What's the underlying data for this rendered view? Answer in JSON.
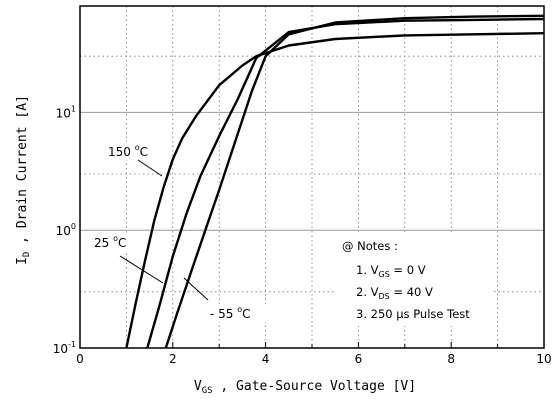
{
  "chart_data": {
    "type": "line",
    "xlabel": "V",
    "xlabel_sub": "GS",
    "xlabel_rest": " , Gate-Source Voltage   [V]",
    "ylabel": "I",
    "ylabel_sub": "D",
    "ylabel_rest": " , Drain Current   [A]",
    "xlim": [
      0,
      10
    ],
    "ylim": [
      0.1,
      80
    ],
    "y_scale": "log",
    "grid": "dotted",
    "x_ticks": [
      "0",
      "2",
      "4",
      "6",
      "8",
      "10"
    ],
    "y_ticks": [
      {
        "base": "10",
        "exp": "-1",
        "value": 0.1
      },
      {
        "base": "10",
        "exp": "0",
        "value": 1
      },
      {
        "base": "10",
        "exp": "1",
        "value": 10
      }
    ],
    "series": [
      {
        "name": "150 °C",
        "x": [
          1.0,
          1.2,
          1.4,
          1.6,
          1.8,
          2.0,
          2.2,
          2.5,
          3.0,
          3.5,
          3.8,
          4.5,
          5.5,
          7.0,
          8.5,
          10.0
        ],
        "y": [
          0.1,
          0.24,
          0.55,
          1.2,
          2.3,
          4.0,
          6.0,
          9.3,
          17.0,
          25.0,
          30.0,
          37.0,
          42.0,
          45.0,
          46.0,
          47.0
        ]
      },
      {
        "name": "25 °C",
        "x": [
          1.45,
          1.7,
          2.0,
          2.3,
          2.6,
          3.0,
          3.4,
          3.8,
          4.5,
          5.5,
          7.0,
          8.5,
          10.0
        ],
        "y": [
          0.1,
          0.22,
          0.6,
          1.4,
          2.9,
          6.3,
          13.0,
          29.0,
          48.0,
          56.0,
          60.0,
          61.0,
          62.0
        ]
      },
      {
        "name": "- 55 °C",
        "x": [
          1.85,
          2.1,
          2.4,
          2.7,
          3.0,
          3.3,
          3.7,
          4.0,
          4.5,
          5.5,
          7.0,
          8.5,
          10.0
        ],
        "y": [
          0.1,
          0.2,
          0.45,
          1.0,
          2.2,
          5.0,
          15.0,
          30.0,
          46.0,
          58.0,
          63.0,
          65.0,
          66.0
        ]
      }
    ],
    "curve_labels": {
      "c150": {
        "text": "150 ",
        "deg": "o",
        "unit": "C"
      },
      "c25": {
        "text": "25 ",
        "deg": "o",
        "unit": "C"
      },
      "cm55": {
        "text": "- 55 ",
        "deg": "o",
        "unit": "C"
      }
    },
    "notes": {
      "title": "@ Notes :",
      "n1_pre": "1. V",
      "n1_sub": "GS",
      "n1_post": " = 0 V",
      "n2_pre": "2. V",
      "n2_sub": "DS",
      "n2_post": " = 40 V",
      "n3": "3. 250 µs Pulse Test"
    }
  }
}
